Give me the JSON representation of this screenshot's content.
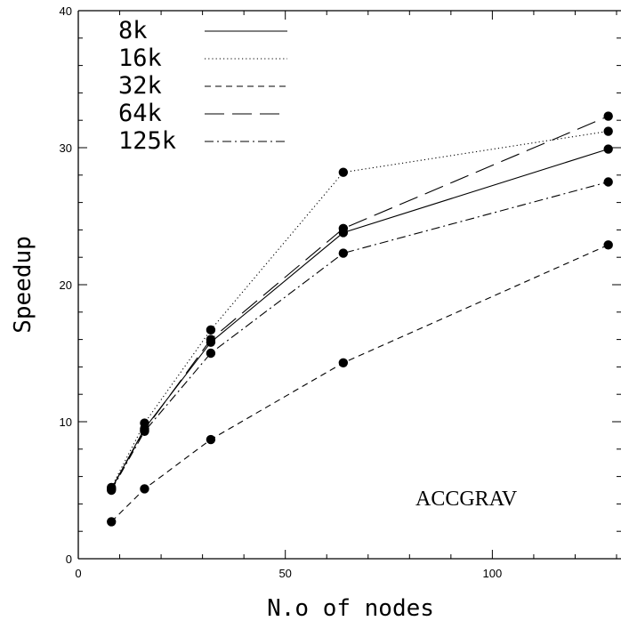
{
  "chart_data": {
    "type": "line",
    "xlabel": "N.o of nodes",
    "ylabel": "Speedup",
    "xlim": [
      0,
      130
    ],
    "ylim": [
      0,
      40
    ],
    "xticks": [
      0,
      50,
      100
    ],
    "yticks": [
      0,
      10,
      20,
      30,
      40
    ],
    "grid": false,
    "legend_position": "top-left",
    "annotation": "ACCGRAV",
    "x": [
      8,
      16,
      32,
      64,
      128
    ],
    "series": [
      {
        "name": "8k",
        "style": "solid",
        "values": [
          5.1,
          9.5,
          15.8,
          23.8,
          29.9
        ]
      },
      {
        "name": "16k",
        "style": "dotted",
        "values": [
          5.2,
          9.9,
          16.7,
          28.2,
          31.2
        ]
      },
      {
        "name": "32k",
        "style": "short-dash",
        "values": [
          2.7,
          5.1,
          8.7,
          14.3,
          22.9
        ]
      },
      {
        "name": "64k",
        "style": "long-dash",
        "values": [
          5.1,
          9.4,
          16.0,
          24.1,
          32.3
        ]
      },
      {
        "name": "125k",
        "style": "dash-dot",
        "values": [
          5.0,
          9.3,
          15.0,
          22.3,
          27.5
        ]
      }
    ]
  }
}
